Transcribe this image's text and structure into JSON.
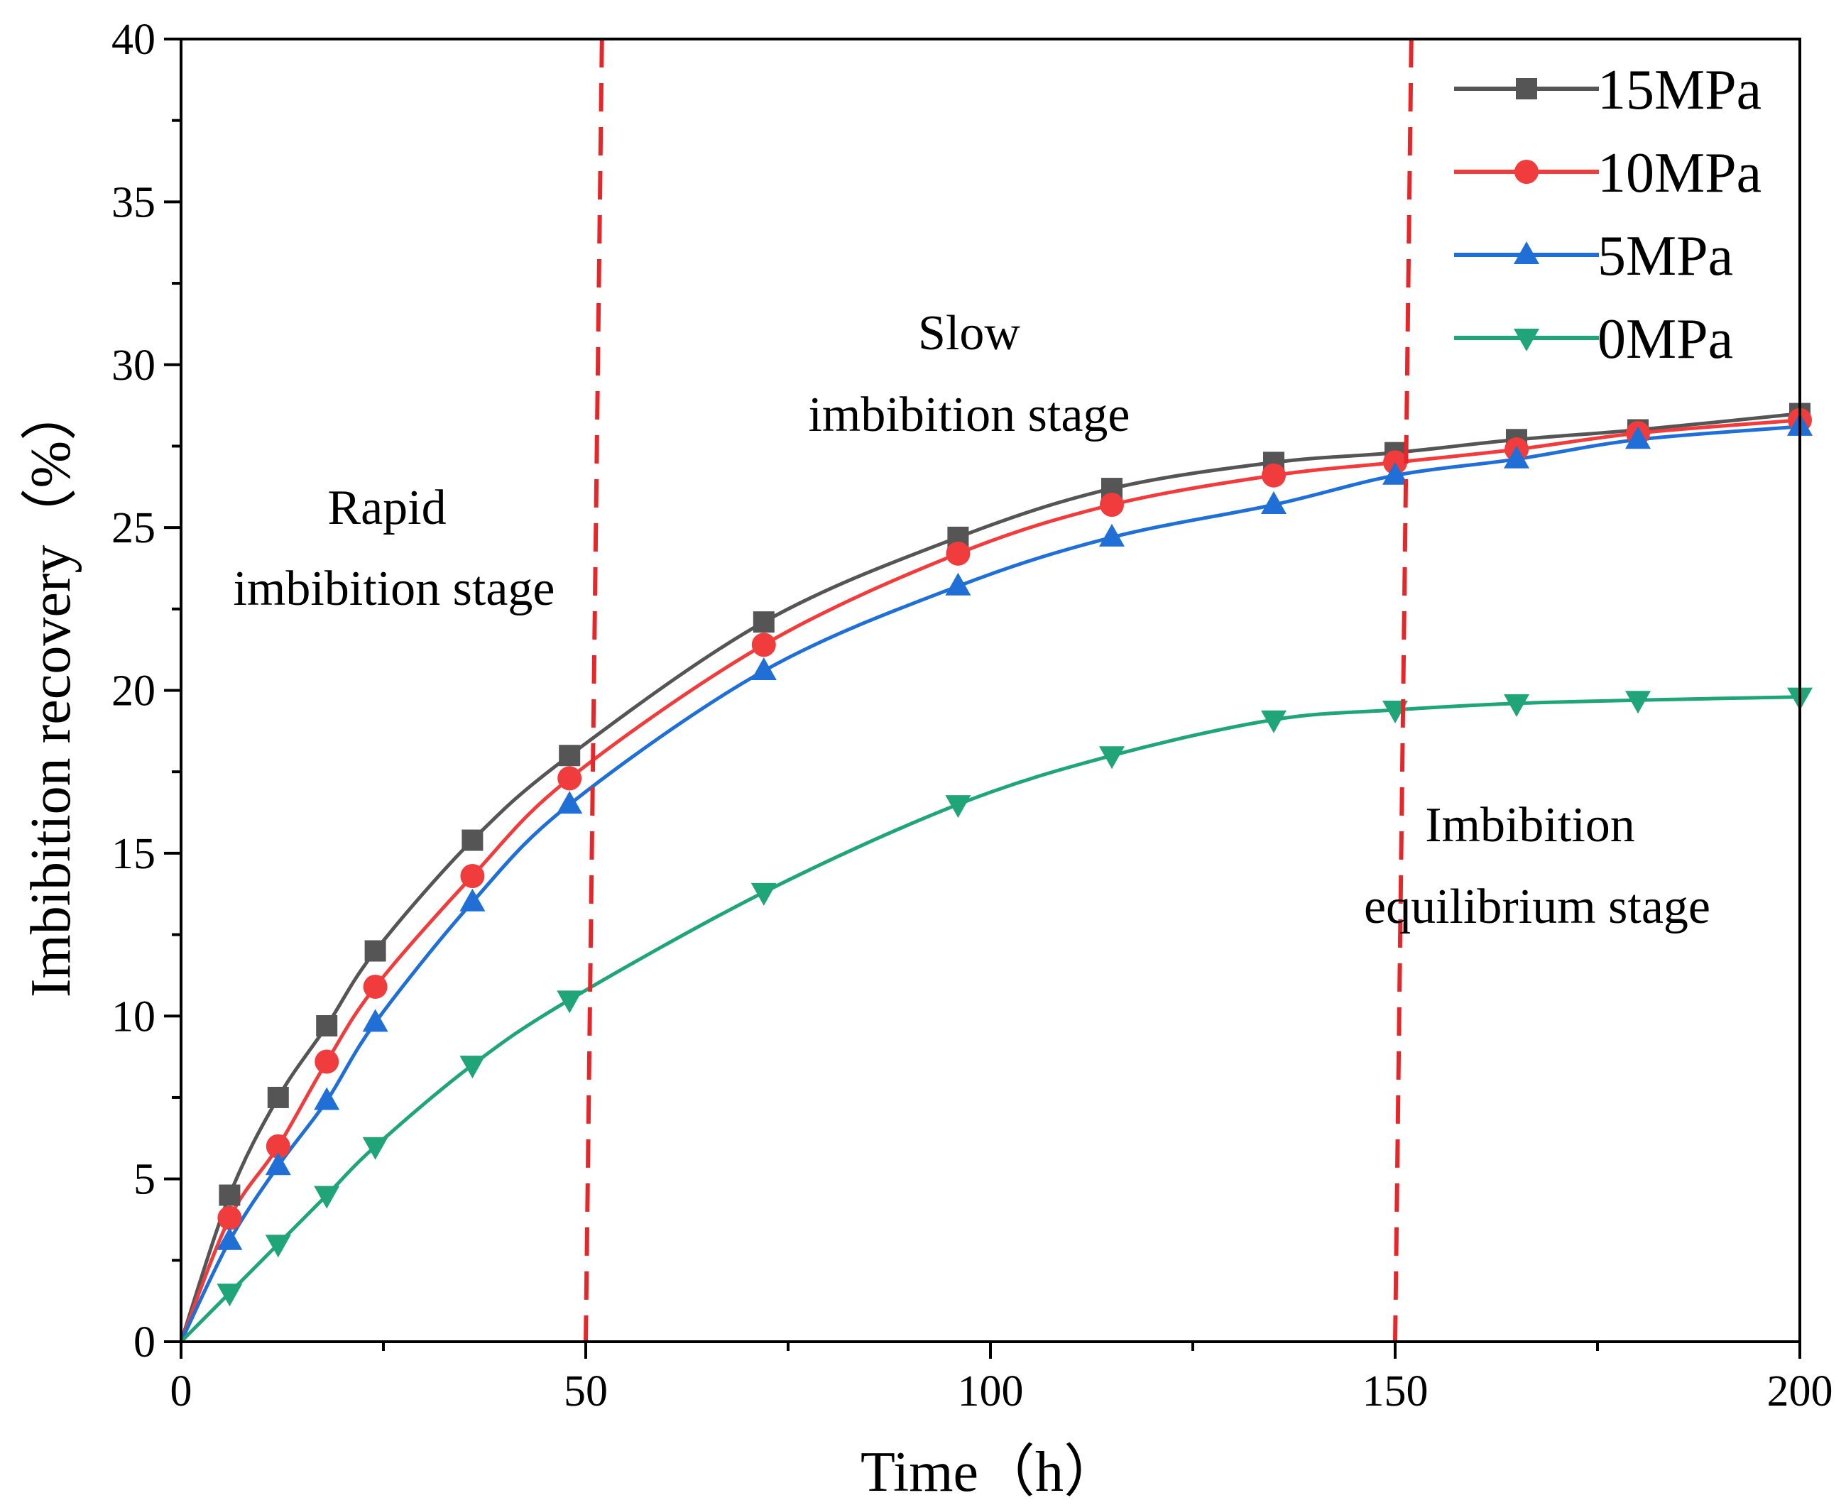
{
  "chart_data": {
    "type": "line",
    "xlabel": "Time（h）",
    "ylabel": "Imbibition recovery（%）",
    "xlim": [
      0,
      200
    ],
    "ylim": [
      0,
      40
    ],
    "xticks": [
      0,
      50,
      100,
      150,
      200
    ],
    "yticks": [
      0,
      5,
      10,
      15,
      20,
      25,
      30,
      35,
      40
    ],
    "x": [
      0,
      6,
      12,
      18,
      24,
      36,
      48,
      72,
      96,
      115,
      135,
      150,
      165,
      180,
      200
    ],
    "series": [
      {
        "name": "15MPa",
        "color": "#555555",
        "marker": "square",
        "values": [
          0,
          4.5,
          7.5,
          9.7,
          12.0,
          15.4,
          18.0,
          22.1,
          24.7,
          26.2,
          27.0,
          27.3,
          27.7,
          28.0,
          28.5
        ]
      },
      {
        "name": "10MPa",
        "color": "#f03c3c",
        "marker": "circle",
        "values": [
          0,
          3.8,
          6.0,
          8.6,
          10.9,
          14.3,
          17.3,
          21.4,
          24.2,
          25.7,
          26.6,
          27.0,
          27.4,
          27.9,
          28.3
        ]
      },
      {
        "name": "5MPa",
        "color": "#1f6fd6",
        "marker": "triangle-up",
        "values": [
          0,
          3.1,
          5.4,
          7.4,
          9.8,
          13.5,
          16.5,
          20.6,
          23.2,
          24.7,
          25.7,
          26.6,
          27.1,
          27.7,
          28.1
        ]
      },
      {
        "name": "0MPa",
        "color": "#1fa578",
        "marker": "triangle-down",
        "values": [
          0,
          1.5,
          3.0,
          4.5,
          6.0,
          8.5,
          10.5,
          13.8,
          16.5,
          18.0,
          19.1,
          19.4,
          19.6,
          19.7,
          19.8
        ]
      }
    ],
    "stage_boundaries": [
      {
        "x_top": 52,
        "x_bottom": 50,
        "color": "#e8262a"
      },
      {
        "x_top": 152,
        "x_bottom": 150,
        "color": "#e8262a"
      }
    ],
    "annotations": [
      {
        "lines": [
          "Rapid",
          "imbibition stage"
        ]
      },
      {
        "lines": [
          "Slow",
          "imbibition stage"
        ]
      },
      {
        "lines": [
          "Imbibition",
          "equilibrium stage"
        ]
      }
    ],
    "legend_position": "top-right"
  }
}
